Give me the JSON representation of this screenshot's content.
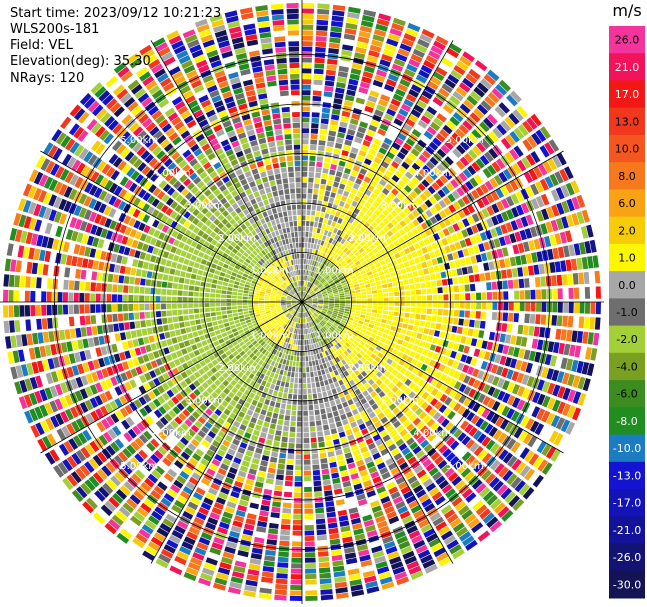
{
  "header": {
    "start_time": "Start time: 2023/09/12 10:21:23",
    "instrument": "WLS200s-181",
    "field": "Field: VEL",
    "elevation": "Elevation(deg): 35.30",
    "nrays": "NRays: 120"
  },
  "chart_data": {
    "type": "heatmap",
    "projection": "polar-ppi",
    "field": "VEL",
    "nrays": 120,
    "range_ring_labels": [
      "1.00km",
      "2.00km",
      "3.00km",
      "4.00km",
      "5.00km"
    ],
    "ring_ranges_km": [
      1,
      2,
      3,
      4,
      5
    ],
    "max_range_km": 6.1,
    "radial_spokes_deg": [
      0,
      30,
      60,
      90,
      120,
      150,
      180,
      210,
      240,
      270,
      300,
      330
    ],
    "colorbar": {
      "unit": "m/s",
      "tick_labels": [
        "26.0",
        "21.0",
        "17.0",
        "13.0",
        "10.0",
        "8.0",
        "6.0",
        "2.0",
        "1.0",
        "0.0",
        "-1.0",
        "-2.0",
        "-4.0",
        "-6.0",
        "-8.0",
        "-10.0",
        "-13.0",
        "-17.0",
        "-21.0",
        "-26.0",
        "-30.0"
      ],
      "colors": [
        "#f4349c",
        "#f2135a",
        "#f31716",
        "#f2381c",
        "#f5561f",
        "#f7791d",
        "#f8a214",
        "#f6cb0a",
        "#fcf700",
        "#a7a7a7",
        "#6e6e6e",
        "#a3cf38",
        "#79a021",
        "#3d8c1f",
        "#1f8d20",
        "#1b7cc2",
        "#1313d1",
        "#1313b7",
        "#131399",
        "#131374",
        "#131356"
      ]
    },
    "pattern_notes": {
      "near_zone_km": 0.9,
      "mid_zone_km": 2.7,
      "outer_noise_start_km": 3.5
    }
  }
}
